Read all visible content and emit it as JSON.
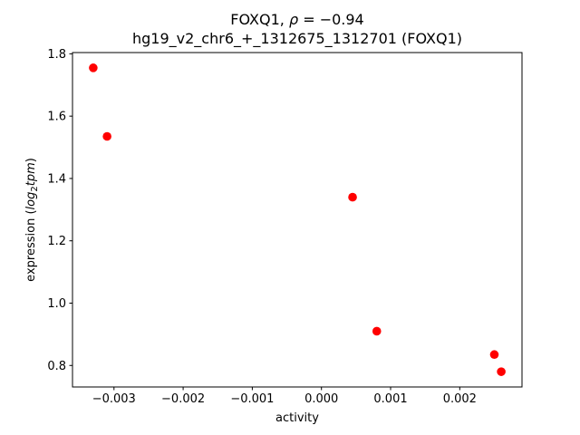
{
  "chart_data": {
    "type": "scatter",
    "title": "FOXQ1, ρ = −0.94",
    "title_parts": {
      "prefix": "FOXQ1, ",
      "rho": "ρ",
      "rest": " = −0.94"
    },
    "subtitle": "hg19_v2_chr6_+_1312675_1312701 (FOXQ1)",
    "xlabel": "activity",
    "ylabel": "expression (log₂tpm)",
    "ylabel_parts": {
      "prefix": "expression (",
      "log": "log",
      "sub": "2",
      "tpm": "tpm",
      "suffix": ")"
    },
    "xlim": [
      -0.0036,
      0.0029
    ],
    "ylim": [
      0.731,
      1.804
    ],
    "xticks": {
      "values": [
        -0.003,
        -0.002,
        -0.001,
        0.0,
        0.001,
        0.002
      ],
      "labels": [
        "−0.003",
        "−0.002",
        "−0.001",
        "0.000",
        "0.001",
        "0.002"
      ]
    },
    "yticks": {
      "values": [
        0.8,
        1.0,
        1.2,
        1.4,
        1.6,
        1.8
      ],
      "labels": [
        "0.8",
        "1.0",
        "1.2",
        "1.4",
        "1.6",
        "1.8"
      ]
    },
    "grid": false,
    "marker": {
      "shape": "circle",
      "radius": 4.8,
      "color": "#ff0000"
    },
    "series": [
      {
        "name": "points",
        "color": "#ff0000",
        "points": [
          {
            "x": -0.0033,
            "y": 1.755
          },
          {
            "x": -0.0031,
            "y": 1.535
          },
          {
            "x": 0.00045,
            "y": 1.34
          },
          {
            "x": 0.0008,
            "y": 0.91
          },
          {
            "x": 0.0025,
            "y": 0.835
          },
          {
            "x": 0.0026,
            "y": 0.78
          }
        ]
      }
    ],
    "colors": {
      "background": "#ffffff",
      "axis": "#000000",
      "text": "#000000",
      "point": "#ff0000"
    }
  }
}
